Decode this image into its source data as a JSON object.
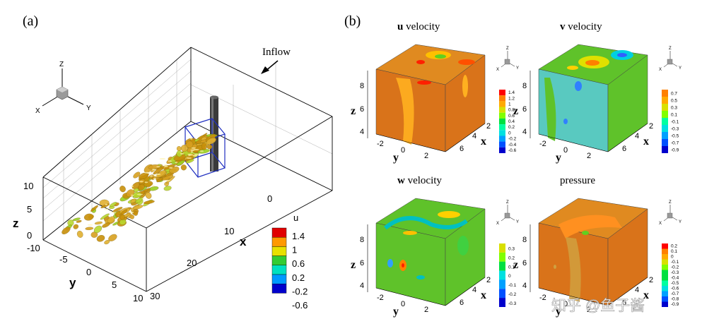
{
  "panel_a": {
    "label": "(a)",
    "inflow": "Inflow",
    "triad": {
      "z": "Z",
      "x": "X",
      "y": "Y"
    },
    "z_axis": {
      "label": "z",
      "ticks": [
        "10",
        "5",
        "0"
      ]
    },
    "y_axis": {
      "label": "y",
      "ticks": [
        "-10",
        "-5",
        "0",
        "5",
        "10"
      ]
    },
    "x_axis": {
      "label": "x",
      "ticks": [
        "0",
        "10",
        "20",
        "30"
      ]
    },
    "legend": {
      "title": "u",
      "labels": [
        "1.4",
        "1",
        "0.6",
        "0.2",
        "-0.2",
        "-0.6"
      ]
    }
  },
  "panel_b": {
    "label": "(b)",
    "cubes": [
      {
        "title_bold": "u",
        "title_rest": " velocity",
        "legend": [
          "1.4",
          "1.2",
          "1",
          "0.8",
          "0.6",
          "0.4",
          "0.2",
          "0",
          "-0.2",
          "-0.4",
          "-0.6"
        ]
      },
      {
        "title_bold": "v",
        "title_rest": " velocity",
        "legend": [
          "0.7",
          "0.5",
          "0.3",
          "0.1",
          "-0.1",
          "-0.3",
          "-0.5",
          "-0.7",
          "-0.9"
        ]
      },
      {
        "title_bold": "w",
        "title_rest": " velocity",
        "legend": [
          "0.3",
          "0.2",
          "0.1",
          "0",
          "-0.1",
          "-0.2",
          "-0.3"
        ]
      },
      {
        "title_bold": "",
        "title_rest": "pressure",
        "legend": [
          "0.2",
          "0.1",
          "0",
          "-0.1",
          "-0.2",
          "-0.3",
          "-0.4",
          "-0.5",
          "-0.6",
          "-0.7",
          "-0.8",
          "-0.9"
        ]
      }
    ],
    "axes": {
      "z_label": "z",
      "z_ticks": [
        "8",
        "6",
        "4"
      ],
      "y_label": "y",
      "y_ticks": [
        "-2",
        "0",
        "2"
      ],
      "x_label": "x",
      "x_ticks": [
        "2",
        "4",
        "6"
      ]
    },
    "triad": {
      "z": "Z",
      "x": "X",
      "y": "Y"
    }
  },
  "watermark": "知乎 @鱼子酱",
  "colors": {
    "contour": [
      "#ff0000",
      "#ff8000",
      "#ffaa00",
      "#d9e000",
      "#80ff00",
      "#00e040",
      "#00ffa0",
      "#00e0e0",
      "#00a0ff",
      "#0050ff",
      "#0000cc"
    ],
    "legend_a": [
      "#e00000",
      "#ff9900",
      "#e8e000",
      "#33cc33",
      "#00e0c0",
      "#0099ff",
      "#0000cc"
    ],
    "iso_gold": "#c8900a",
    "iso_green": "#9ad020",
    "cube_orange": "#d9731a",
    "cube_green": "#5fc22a",
    "cube_cyan": "#59c9c0"
  }
}
